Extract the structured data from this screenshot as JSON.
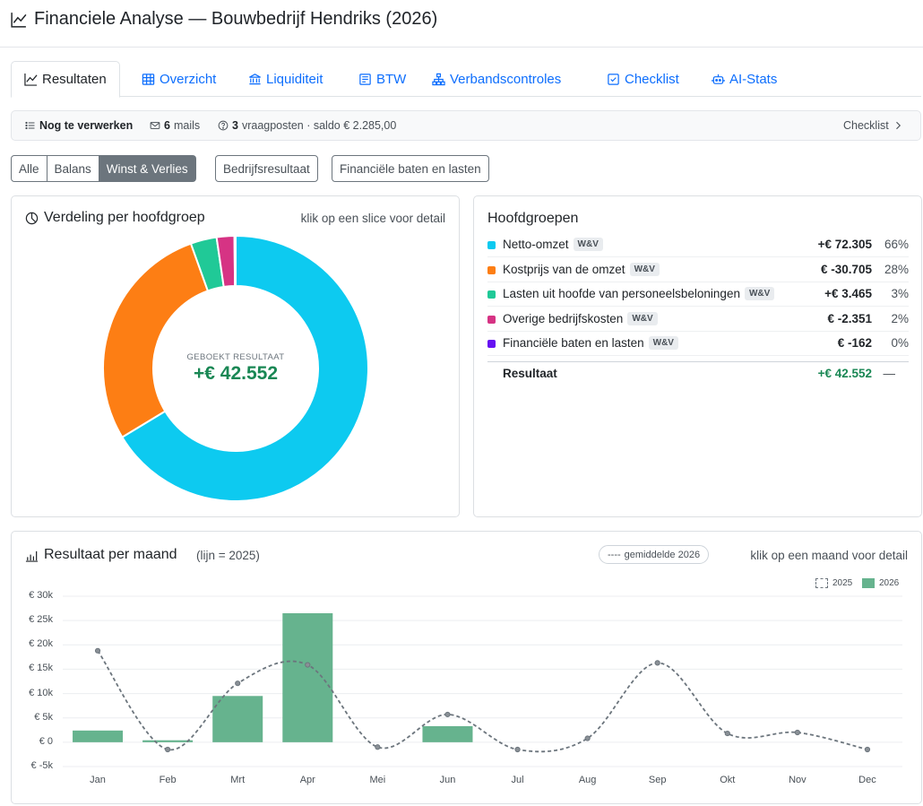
{
  "header": {
    "title": "Financiele Analyse — Bouwbedrijf Hendriks (2026)"
  },
  "tabs": [
    {
      "label": "Resultaten",
      "active": true
    },
    {
      "label": "Overzicht"
    },
    {
      "label": "Liquiditeit"
    },
    {
      "label": "BTW"
    },
    {
      "label": "Verbandscontroles"
    },
    {
      "label": "Checklist"
    },
    {
      "label": "AI-Stats"
    }
  ],
  "status": {
    "todo_label": "Nog te verwerken",
    "mails_count": "6",
    "mails_label": "mails",
    "questions_count": "3",
    "questions_label": "vraagposten · saldo € 2.285,00",
    "checklist_link": "Checklist"
  },
  "filters": {
    "group": [
      "Alle",
      "Balans",
      "Winst & Verlies"
    ],
    "active": "Winst & Verlies",
    "extra": [
      "Bedrijfsresultaat",
      "Financiële baten en lasten"
    ]
  },
  "distribution": {
    "title": "Verdeling per hoofdgroep",
    "hint": "klik op een slice voor detail",
    "center_label": "GEBOEKT RESULTAAT",
    "center_value": "+€ 42.552"
  },
  "hoofdgroepen": {
    "title": "Hoofdgroepen",
    "rows": [
      {
        "name": "Netto-omzet",
        "badge": "W&V",
        "amount": "+€ 72.305",
        "pct": "66%",
        "color": "#0dcaf0",
        "value": 72305
      },
      {
        "name": "Kostprijs van de omzet",
        "badge": "W&V",
        "amount": "€ -30.705",
        "pct": "28%",
        "color": "#fd7e14",
        "value": 30705
      },
      {
        "name": "Lasten uit hoofde van personeelsbeloningen",
        "badge": "W&V",
        "amount": "+€ 3.465",
        "pct": "3%",
        "color": "#20c997",
        "value": 3465
      },
      {
        "name": "Overige bedrijfskosten",
        "badge": "W&V",
        "amount": "€ -2.351",
        "pct": "2%",
        "color": "#d63384",
        "value": 2351
      },
      {
        "name": "Financiële baten en lasten",
        "badge": "W&V",
        "amount": "€ -162",
        "pct": "0%",
        "color": "#6610f2",
        "value": 162
      }
    ],
    "total": {
      "name": "Resultaat",
      "amount": "+€ 42.552",
      "pct": "—"
    }
  },
  "monthly": {
    "title": "Resultaat per maand",
    "subtitle": "(lijn = 2025)",
    "avg_label": "gemiddelde 2026",
    "hint": "klik op een maand voor detail"
  },
  "chart_data": {
    "type": "bar",
    "categories": [
      "Jan",
      "Feb",
      "Mrt",
      "Apr",
      "Mei",
      "Jun",
      "Jul",
      "Aug",
      "Sep",
      "Okt",
      "Nov",
      "Dec"
    ],
    "series": [
      {
        "name": "2026",
        "type": "bar",
        "color": "#66b38e",
        "values": [
          2400,
          400,
          9500,
          26500,
          0,
          3300,
          0,
          0,
          0,
          0,
          0,
          0
        ]
      },
      {
        "name": "2025",
        "type": "line",
        "style": "dashed",
        "color": "#6c757d",
        "values": [
          18800,
          -1500,
          12100,
          15900,
          -1000,
          5700,
          -1500,
          800,
          16300,
          1800,
          2000,
          -1500
        ]
      }
    ],
    "yticks": [
      "€ 30k",
      "€ 25k",
      "€ 20k",
      "€ 15k",
      "€ 10k",
      "€ 5k",
      "€ 0",
      "€ -5k"
    ],
    "ylim": [
      -5000,
      30000
    ],
    "legend": [
      "2025",
      "2026"
    ],
    "legend_position": "top-right",
    "grid": true
  }
}
